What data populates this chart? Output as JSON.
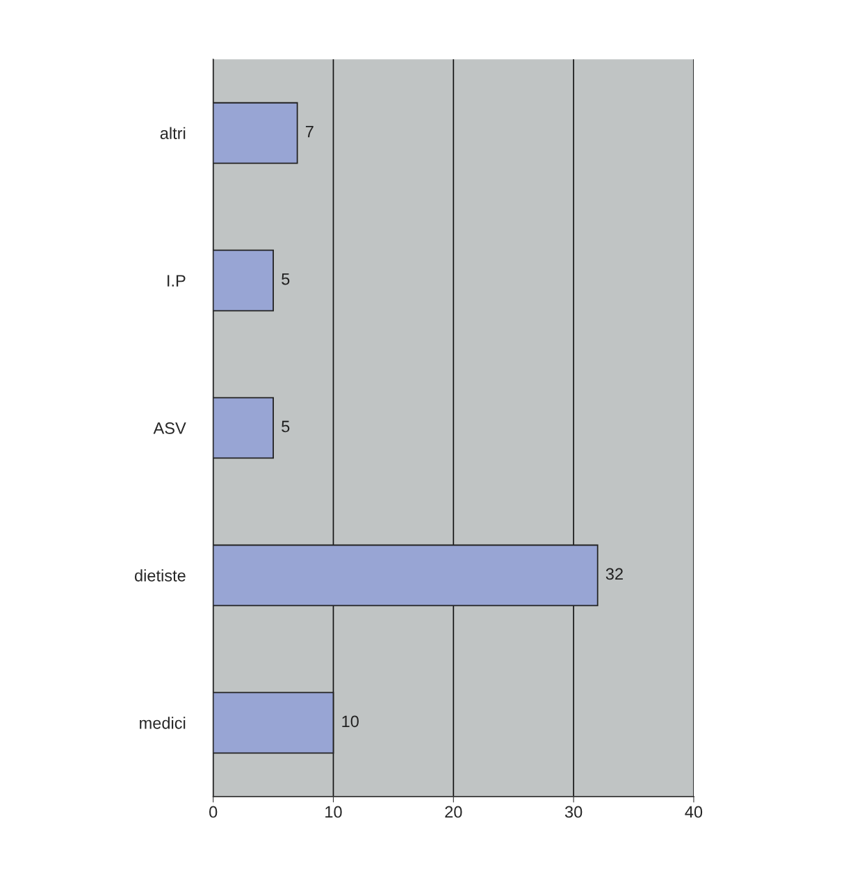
{
  "chart_data": {
    "type": "bar",
    "orientation": "horizontal",
    "categories": [
      "altri",
      "I.P",
      "ASV",
      "dietiste",
      "medici"
    ],
    "values": [
      7,
      5,
      5,
      32,
      10
    ],
    "color": "#98a5d4",
    "xlim": [
      0,
      40
    ],
    "xticks": [
      0,
      10,
      20,
      30,
      40
    ],
    "grid": "x",
    "data_labels": true
  }
}
